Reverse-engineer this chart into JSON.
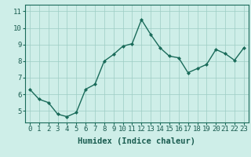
{
  "x": [
    0,
    1,
    2,
    3,
    4,
    5,
    6,
    7,
    8,
    9,
    10,
    11,
    12,
    13,
    14,
    15,
    16,
    17,
    18,
    19,
    20,
    21,
    22,
    23
  ],
  "y": [
    6.3,
    5.7,
    5.5,
    4.8,
    4.65,
    4.9,
    6.3,
    6.6,
    8.0,
    8.4,
    8.9,
    9.05,
    10.5,
    9.6,
    8.8,
    8.3,
    8.2,
    7.3,
    7.55,
    7.8,
    8.7,
    8.45,
    8.05,
    8.8
  ],
  "line_color": "#1a6b5a",
  "marker": "D",
  "marker_size": 2.0,
  "bg_color": "#ceeee8",
  "grid_color": "#9dccc4",
  "xlabel": "Humidex (Indice chaleur)",
  "xlabel_fontsize": 7.5,
  "yticks": [
    5,
    6,
    7,
    8,
    9,
    10,
    11
  ],
  "xticks": [
    0,
    1,
    2,
    3,
    4,
    5,
    6,
    7,
    8,
    9,
    10,
    11,
    12,
    13,
    14,
    15,
    16,
    17,
    18,
    19,
    20,
    21,
    22,
    23
  ],
  "xlim": [
    -0.5,
    23.5
  ],
  "ylim": [
    4.3,
    11.4
  ],
  "tick_fontsize": 6.5,
  "linewidth": 1.0,
  "tick_color": "#1a5c50",
  "label_color": "#1a5c50"
}
